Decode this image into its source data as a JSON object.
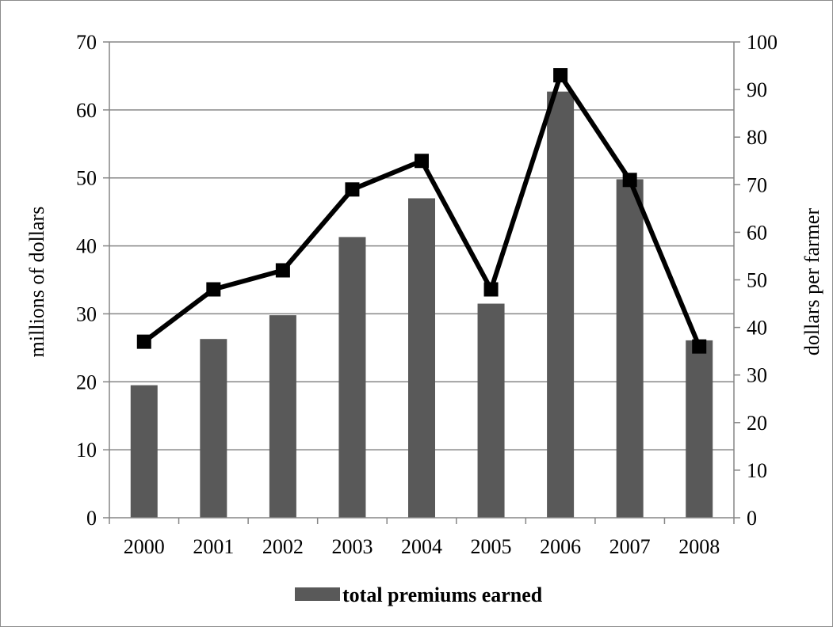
{
  "chart_data": {
    "type": "bar",
    "categories": [
      "2000",
      "2001",
      "2002",
      "2003",
      "2004",
      "2005",
      "2006",
      "2007",
      "2008"
    ],
    "series": [
      {
        "name": "total premiums earned",
        "type": "bar",
        "axis": "left",
        "values": [
          19.5,
          26.3,
          29.8,
          41.3,
          47.0,
          31.5,
          62.7,
          49.8,
          26.1
        ]
      },
      {
        "type": "line",
        "axis": "right",
        "marker": "square",
        "values": [
          37,
          48,
          52,
          69,
          75,
          48,
          93,
          71,
          36
        ]
      }
    ],
    "ylabel": "millions of dollars",
    "ylabel_right": "dollars per farmer",
    "ylim": [
      0,
      70
    ],
    "ylim_right": [
      0,
      100
    ],
    "yticks": [
      "0",
      "10",
      "20",
      "30",
      "40",
      "50",
      "60",
      "70"
    ],
    "yticks_right": [
      "0",
      "10",
      "20",
      "30",
      "40",
      "50",
      "60",
      "70",
      "80",
      "90",
      "100"
    ],
    "grid": true,
    "legend_position": "bottom",
    "colors": {
      "bar": "#595959",
      "line": "#000000",
      "grid": "#868686"
    }
  }
}
